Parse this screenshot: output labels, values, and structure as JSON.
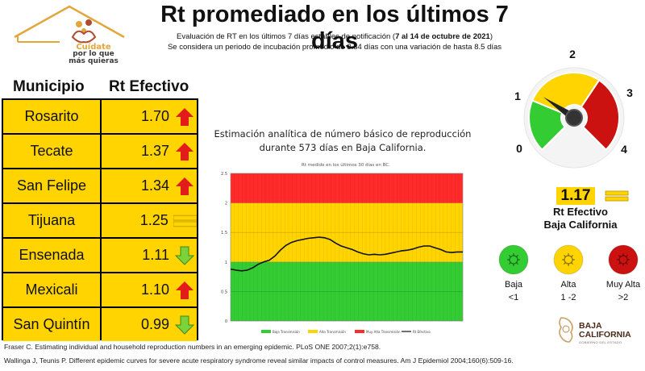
{
  "logo": {
    "line1": "Cuídate",
    "line2": "por lo que",
    "line3": "más quieras"
  },
  "header": {
    "title": "Rt promediado en los últimos 7 días",
    "subtitle_line1_pre": "Evaluación de RT en los últimos 7 días estables de notificación (",
    "subtitle_line1_bold": "7 al 14 de octubre de 2021",
    "subtitle_line1_post": ")",
    "subtitle_line2": "Se considera un periodo de incubación promedio de 3.84 días con una variación de hasta 8.5 días"
  },
  "table": {
    "headers": {
      "municipio": "Municipio",
      "rt": "Rt Efectivo"
    },
    "rows": [
      {
        "name": "Rosarito",
        "value": "1.70",
        "trend": "up",
        "trend_icon": "red-up-arrow-icon"
      },
      {
        "name": "Tecate",
        "value": "1.37",
        "trend": "up",
        "trend_icon": "red-up-arrow-icon"
      },
      {
        "name": "San Felipe",
        "value": "1.34",
        "trend": "up",
        "trend_icon": "red-up-arrow-icon"
      },
      {
        "name": "Tijuana",
        "value": "1.25",
        "trend": "equal",
        "trend_icon": "yellow-equal-icon"
      },
      {
        "name": "Ensenada",
        "value": "1.11",
        "trend": "down",
        "trend_icon": "green-down-arrow-icon"
      },
      {
        "name": "Mexicali",
        "value": "1.10",
        "trend": "up",
        "trend_icon": "red-up-arrow-icon"
      },
      {
        "name": "San Quintín",
        "value": "0.99",
        "trend": "down",
        "trend_icon": "green-down-arrow-icon"
      }
    ]
  },
  "chart": {
    "title_line1": "Estimación analítica de número básico de reproducción",
    "title_line2": "durante 573 días en Baja California."
  },
  "chart_data": {
    "type": "line",
    "title": "Rt medido en los últimos 30 días en BC.",
    "ylim": [
      0,
      2.5
    ],
    "y_ticks": [
      "0",
      "0.5",
      "1",
      "1.5",
      "2",
      "2.5"
    ],
    "bands": [
      {
        "label": "Baja Transmisión",
        "from": 0,
        "to": 1,
        "color": "#33cc33"
      },
      {
        "label": "Alta Transmisión",
        "from": 1,
        "to": 2,
        "color": "#ffd400"
      },
      {
        "label": "Muy Alta Transmisión",
        "from": 2,
        "to": 2.5,
        "color": "#ff2a2a"
      }
    ],
    "series": [
      {
        "name": "Rt Efectivo",
        "values": [
          0.88,
          0.86,
          0.85,
          0.86,
          0.9,
          0.96,
          1.0,
          1.03,
          1.1,
          1.2,
          1.28,
          1.33,
          1.36,
          1.38,
          1.4,
          1.41,
          1.42,
          1.41,
          1.38,
          1.32,
          1.27,
          1.24,
          1.21,
          1.17,
          1.14,
          1.12,
          1.13,
          1.12,
          1.13,
          1.15,
          1.17,
          1.19,
          1.2,
          1.22,
          1.25,
          1.27,
          1.27,
          1.24,
          1.21,
          1.17,
          1.16,
          1.17,
          1.17
        ]
      }
    ],
    "legend": [
      "Baja Transmisión",
      "Alta Transmisión",
      "Muy Alta Transmisión",
      "Rt Efectivo"
    ],
    "grid": true
  },
  "gauge": {
    "labels": [
      "0",
      "1",
      "2",
      "3",
      "4"
    ],
    "value": 1.17,
    "value_text": "1.17",
    "label_line1": "Rt Efectivo",
    "label_line2": "Baja California",
    "trend_icon": "yellow-equal-icon",
    "colors": {
      "green": "#33cc33",
      "yellow": "#ffd400",
      "red": "#cc1111"
    }
  },
  "legend": [
    {
      "label": "Baja",
      "range": "<1",
      "color": "#33cc33",
      "icon": "green-virus-icon"
    },
    {
      "label": "Alta",
      "range": "1 -2",
      "color": "#ffd400",
      "icon": "yellow-virus-icon"
    },
    {
      "label": "Muy Alta",
      "range": ">2",
      "color": "#cc1111",
      "icon": "red-virus-icon"
    }
  ],
  "footer": {
    "ref1": "Fraser C. Estimating individual and household reproduction numbers in an emerging epidemic. PLoS ONE 2007;2(1):e758.",
    "ref2": "Wallinga J, Teunis P. Different epidemic curves for severe acute respiratory syndrome reveal similar impacts of control measures. Am J Epidemiol 2004;160(6):509-16."
  },
  "bc_logo": {
    "line1": "BAJA",
    "line2": "CALIFORNIA",
    "line3": "GOBIERNO DEL ESTADO"
  }
}
